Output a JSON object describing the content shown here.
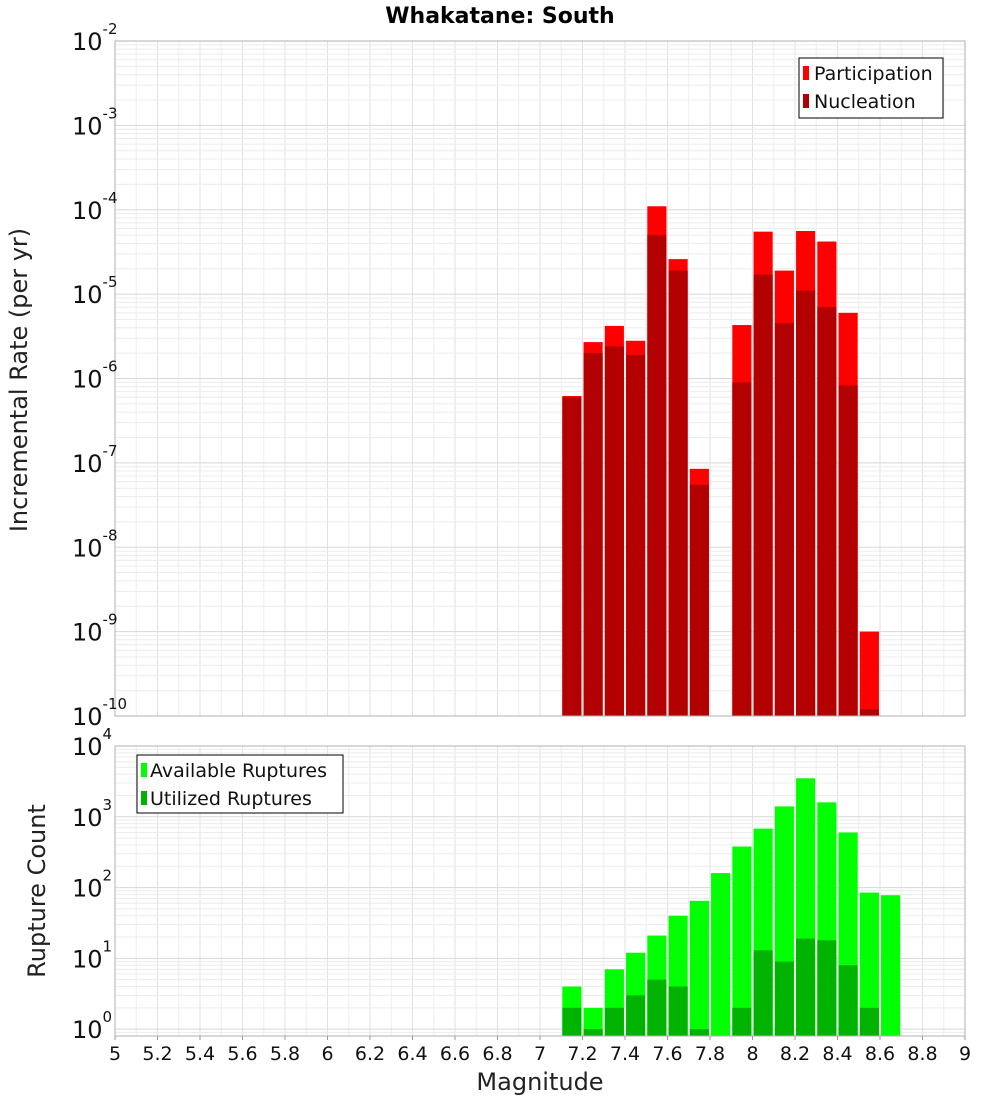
{
  "chart_data": [
    {
      "id": "rate",
      "type": "bar",
      "title": "Whakatane: South",
      "xlabel": "Magnitude",
      "ylabel": "Incremental Rate (per yr)",
      "xlim": [
        5,
        9
      ],
      "ylim": [
        1e-10,
        0.01
      ],
      "yscale": "log",
      "grid": true,
      "legend": "top-right",
      "x": [
        7.15,
        7.25,
        7.35,
        7.45,
        7.55,
        7.65,
        7.75,
        7.95,
        8.05,
        8.15,
        8.25,
        8.35,
        8.45,
        8.55
      ],
      "series": [
        {
          "name": "Participation",
          "color": "#ff0000",
          "values": [
            6.2e-07,
            2.7e-06,
            4.2e-06,
            2.8e-06,
            0.00011,
            2.6e-05,
            8.5e-08,
            4.3e-06,
            5.5e-05,
            1.9e-05,
            5.6e-05,
            4.2e-05,
            6e-06,
            1e-09
          ]
        },
        {
          "name": "Nucleation",
          "color": "#b30000",
          "values": [
            6e-07,
            2e-06,
            2.4e-06,
            1.9e-06,
            5e-05,
            1.9e-05,
            5.5e-08,
            9e-07,
            1.7e-05,
            4.5e-06,
            1.1e-05,
            7e-06,
            8.3e-07,
            1.2e-10
          ]
        }
      ]
    },
    {
      "id": "count",
      "type": "bar",
      "xlabel": "Magnitude",
      "ylabel": "Rupture Count",
      "xlim": [
        5,
        9
      ],
      "ylim": [
        0.8,
        10000
      ],
      "yscale": "log",
      "grid": true,
      "legend": "top-left",
      "x": [
        7.15,
        7.25,
        7.35,
        7.45,
        7.55,
        7.65,
        7.75,
        7.85,
        7.95,
        8.05,
        8.15,
        8.25,
        8.35,
        8.45,
        8.55,
        8.65
      ],
      "series": [
        {
          "name": "Available Ruptures",
          "color": "#00ff00",
          "values": [
            4,
            2,
            7,
            12,
            21,
            40,
            65,
            160,
            380,
            680,
            1400,
            3500,
            1600,
            600,
            85,
            78
          ]
        },
        {
          "name": "Utilized Ruptures",
          "color": "#00b300",
          "values": [
            2,
            1,
            2,
            3,
            5,
            4,
            1,
            null,
            2,
            13,
            9,
            19,
            18,
            8,
            2,
            null
          ]
        }
      ]
    }
  ],
  "x_ticks": [
    "5",
    "5.2",
    "5.4",
    "5.6",
    "5.8",
    "6",
    "6.2",
    "6.4",
    "6.6",
    "6.8",
    "7",
    "7.2",
    "7.4",
    "7.6",
    "7.8",
    "8",
    "8.2",
    "8.4",
    "8.6",
    "8.8",
    "9"
  ],
  "y_ticks_rate": [
    {
      "base": "10",
      "exp": "-2"
    },
    {
      "base": "10",
      "exp": "-3"
    },
    {
      "base": "10",
      "exp": "-4"
    },
    {
      "base": "10",
      "exp": "-5"
    },
    {
      "base": "10",
      "exp": "-6"
    },
    {
      "base": "10",
      "exp": "-7"
    },
    {
      "base": "10",
      "exp": "-8"
    },
    {
      "base": "10",
      "exp": "-9"
    },
    {
      "base": "10",
      "exp": "-10"
    }
  ],
  "y_ticks_count": [
    {
      "base": "10",
      "exp": "4"
    },
    {
      "base": "10",
      "exp": "3"
    },
    {
      "base": "10",
      "exp": "2"
    },
    {
      "base": "10",
      "exp": "1"
    },
    {
      "base": "10",
      "exp": "0"
    }
  ]
}
